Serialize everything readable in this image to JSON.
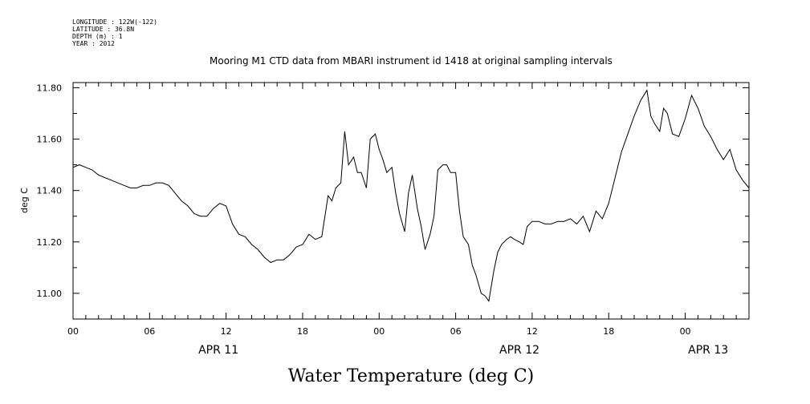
{
  "meta": {
    "longitude": "LONGITUDE : 122W(-122)",
    "latitude": "LATITUDE : 36.8N",
    "depth": "DEPTH (m) : 1",
    "year": "YEAR : 2012"
  },
  "chart_data": {
    "type": "line",
    "title": "Mooring M1 CTD data from MBARI instrument id 1418 at original sampling intervals",
    "xlabel": "Water Temperature (deg C)",
    "ylabel": "deg C",
    "xlim": [
      0,
      53
    ],
    "ylim": [
      10.9,
      11.82
    ],
    "yticks": [
      11.0,
      11.2,
      11.4,
      11.6,
      11.8
    ],
    "ytick_labels": [
      "11.00",
      "11.20",
      "11.40",
      "11.60",
      "11.80"
    ],
    "xticks": [
      0,
      6,
      12,
      18,
      24,
      30,
      36,
      42,
      48
    ],
    "xtick_labels": [
      "00",
      "06",
      "12",
      "18",
      "00",
      "06",
      "12",
      "18",
      "00"
    ],
    "date_labels": [
      {
        "x": 11.4,
        "label": "APR 11"
      },
      {
        "x": 35.0,
        "label": "APR 12"
      },
      {
        "x": 49.8,
        "label": "APR 13"
      }
    ],
    "x": [
      0,
      0.5,
      1,
      1.5,
      2,
      2.5,
      3,
      3.5,
      4,
      4.5,
      5,
      5.5,
      6,
      6.5,
      7,
      7.5,
      8,
      8.5,
      9,
      9.5,
      10,
      10.5,
      11,
      11.5,
      12,
      12.5,
      13,
      13.5,
      14,
      14.5,
      15,
      15.5,
      16,
      16.5,
      17,
      17.5,
      18,
      18.5,
      19,
      19.5,
      20,
      20.3,
      20.6,
      21,
      21.3,
      21.6,
      22,
      22.3,
      22.6,
      23,
      23.3,
      23.7,
      24,
      24.3,
      24.6,
      25,
      25.3,
      25.6,
      26,
      26.3,
      26.6,
      27,
      27.3,
      27.6,
      28,
      28.3,
      28.6,
      29,
      29.3,
      29.6,
      30,
      30.3,
      30.6,
      31,
      31.3,
      31.6,
      32,
      32.3,
      32.6,
      33,
      33.3,
      33.6,
      34,
      34.3,
      34.6,
      35,
      35.3,
      35.6,
      36,
      36.5,
      37,
      37.5,
      38,
      38.5,
      39,
      39.5,
      40,
      40.5,
      41,
      41.5,
      42,
      42.5,
      43,
      43.5,
      44,
      44.5,
      45,
      45.3,
      45.6,
      46,
      46.3,
      46.6,
      47,
      47.5,
      48,
      48.5,
      49,
      49.5,
      50,
      50.5,
      51,
      51.5,
      52,
      52.5,
      53
    ],
    "y": [
      11.49,
      11.5,
      11.49,
      11.48,
      11.46,
      11.45,
      11.44,
      11.43,
      11.42,
      11.41,
      11.41,
      11.42,
      11.42,
      11.43,
      11.43,
      11.42,
      11.39,
      11.36,
      11.34,
      11.31,
      11.3,
      11.3,
      11.33,
      11.35,
      11.34,
      11.27,
      11.23,
      11.22,
      11.19,
      11.17,
      11.14,
      11.12,
      11.13,
      11.13,
      11.15,
      11.18,
      11.19,
      11.23,
      11.21,
      11.22,
      11.38,
      11.36,
      11.41,
      11.43,
      11.63,
      11.5,
      11.53,
      11.47,
      11.47,
      11.41,
      11.6,
      11.62,
      11.56,
      11.52,
      11.47,
      11.49,
      11.39,
      11.31,
      11.24,
      11.39,
      11.46,
      11.33,
      11.26,
      11.17,
      11.23,
      11.3,
      11.48,
      11.5,
      11.5,
      11.47,
      11.47,
      11.32,
      11.22,
      11.19,
      11.11,
      11.07,
      11.0,
      10.99,
      10.97,
      11.09,
      11.16,
      11.19,
      11.21,
      11.22,
      11.21,
      11.2,
      11.19,
      11.26,
      11.28,
      11.28,
      11.27,
      11.27,
      11.28,
      11.28,
      11.29,
      11.27,
      11.3,
      11.24,
      11.32,
      11.29,
      11.35,
      11.45,
      11.55,
      11.62,
      11.69,
      11.75,
      11.79,
      11.69,
      11.66,
      11.63,
      11.72,
      11.7,
      11.62,
      11.61,
      11.68,
      11.77,
      11.72,
      11.65,
      11.61,
      11.56,
      11.52,
      11.56,
      11.48,
      11.44,
      11.41
    ]
  },
  "colors": {
    "line": "#000000",
    "axis": "#000000",
    "background": "#ffffff"
  }
}
